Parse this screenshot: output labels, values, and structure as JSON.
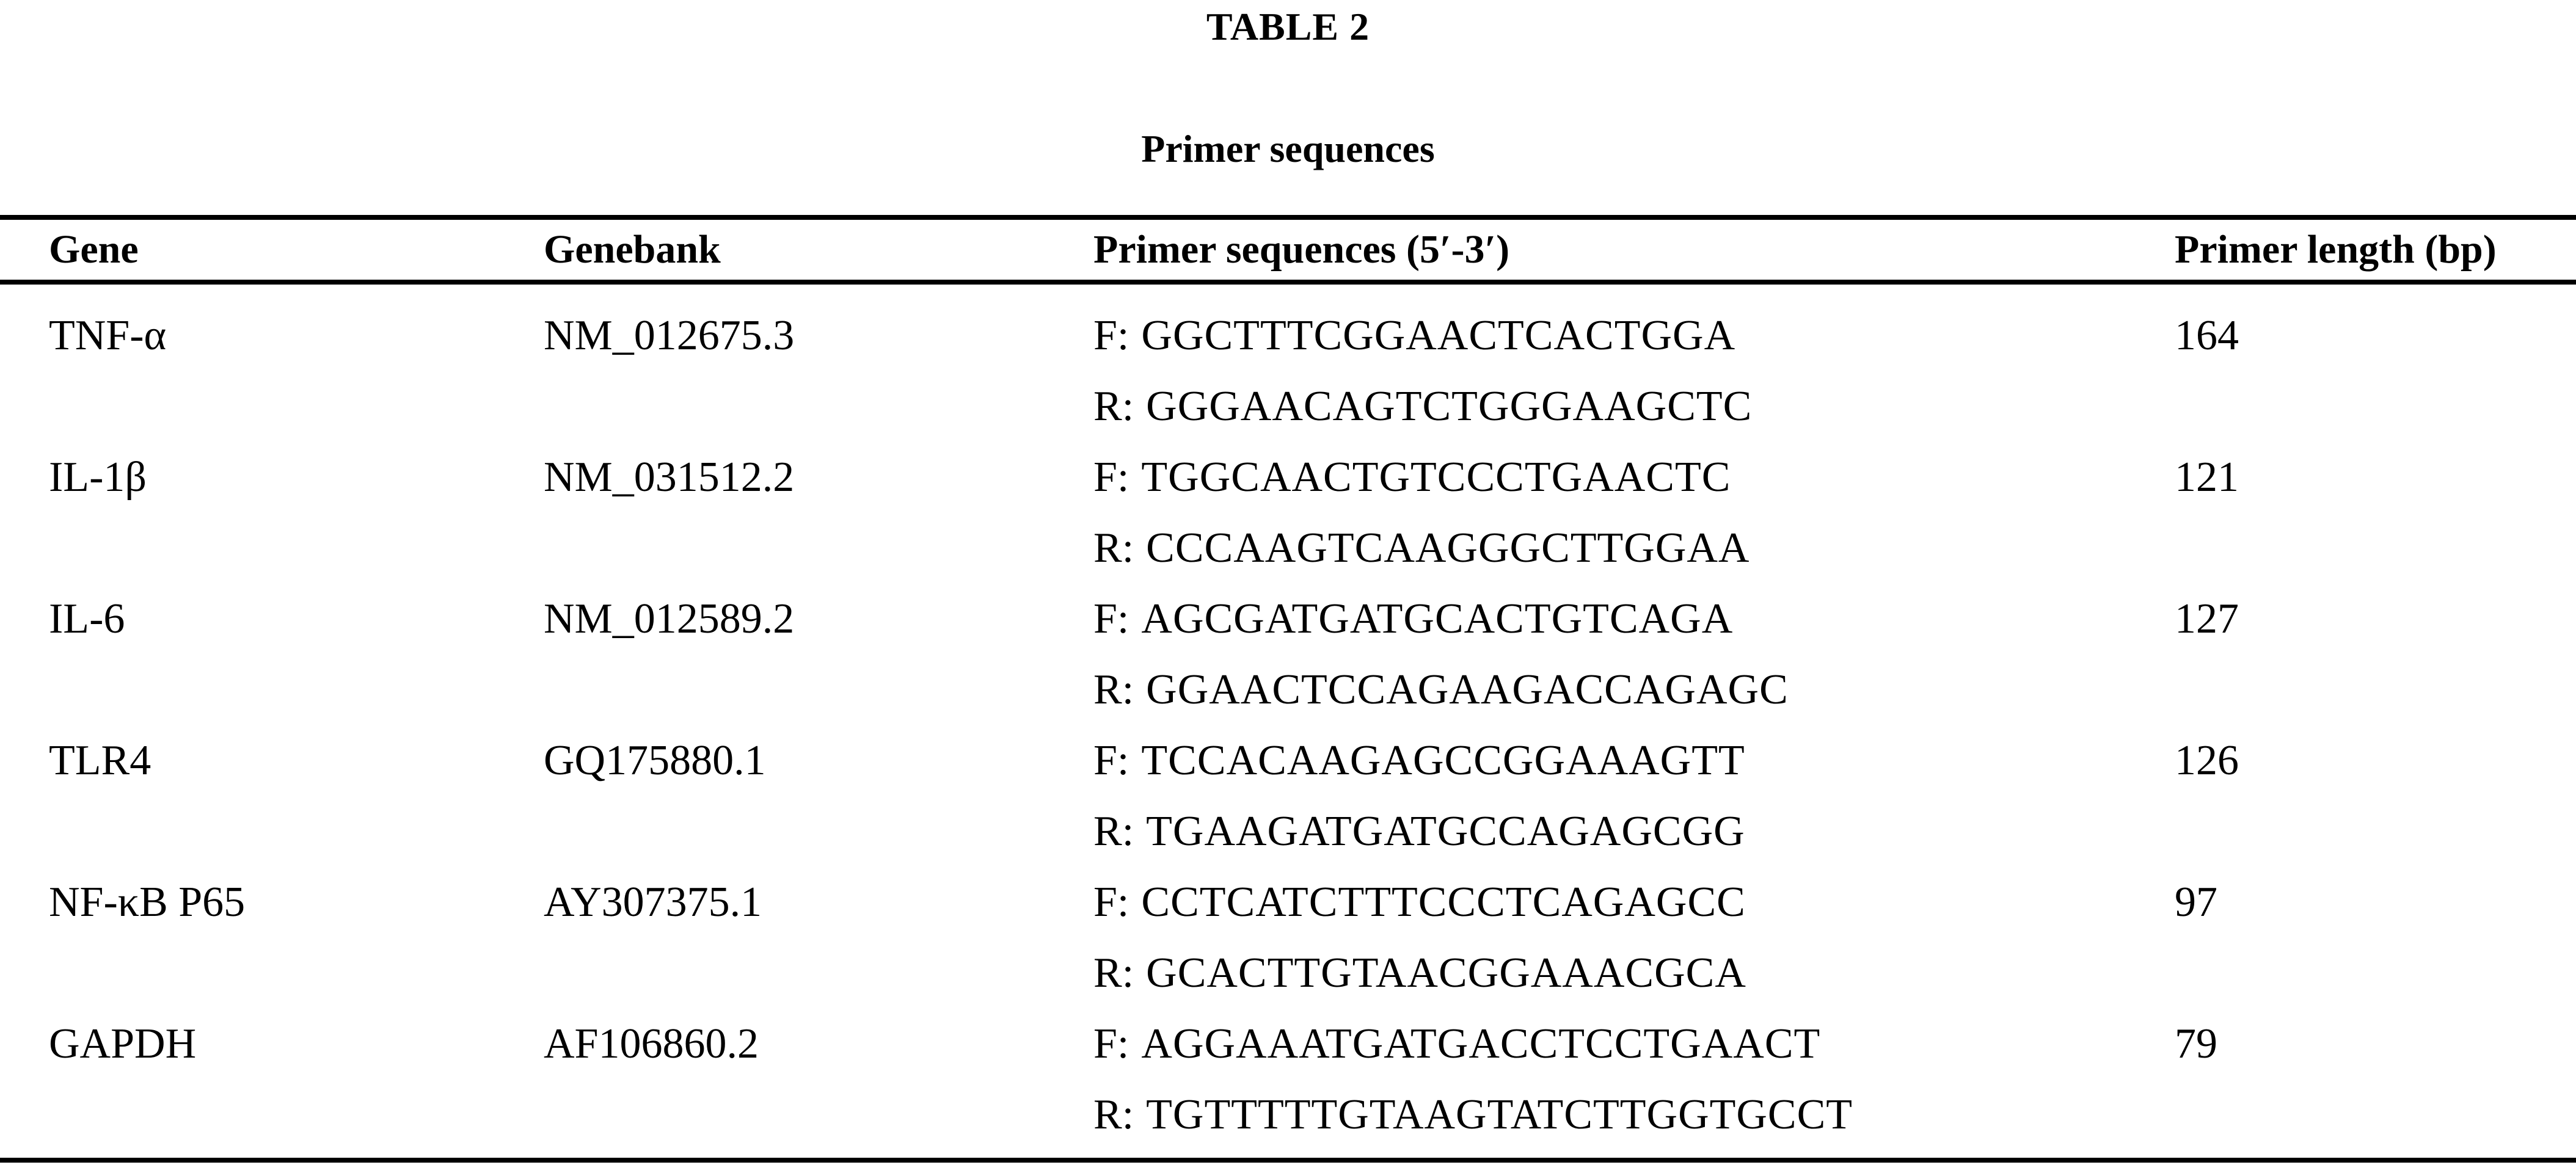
{
  "table": {
    "label": "TABLE 2",
    "caption": "Primer sequences",
    "columns": [
      "Gene",
      "Genebank",
      "Primer sequences (5′-3′)",
      "Primer length (bp)"
    ],
    "forward_prefix": "F:",
    "reverse_prefix": "R:",
    "rows": [
      {
        "gene": "TNF-α",
        "genebank": "NM_012675.3",
        "forward": "GGCTTTCGGAACTCACTGGA",
        "reverse": "GGGAACAGTCTGGGAAGCTC",
        "length_bp": "164"
      },
      {
        "gene": "IL-1β",
        "genebank": "NM_031512.2",
        "forward": "TGGCAACTGTCCCTGAACTC",
        "reverse": "CCCAAGTCAAGGGCTTGGAA",
        "length_bp": "121"
      },
      {
        "gene": "IL-6",
        "genebank": "NM_012589.2",
        "forward": "AGCGATGATGCACTGTCAGA",
        "reverse": "GGAACTCCAGAAGACCAGAGC",
        "length_bp": "127"
      },
      {
        "gene": "TLR4",
        "genebank": "GQ175880.1",
        "forward": "TCCACAAGAGCCGGAAAGTT",
        "reverse": "TGAAGATGATGCCAGAGCGG",
        "length_bp": "126"
      },
      {
        "gene": "NF-κB P65",
        "genebank": "AY307375.1",
        "forward": "CCTCATCTTTCCCTCAGAGCC",
        "reverse": "GCACTTGTAACGGAAACGCA",
        "length_bp": "97"
      },
      {
        "gene": "GAPDH",
        "genebank": "AF106860.2",
        "forward": "AGGAAATGATGACCTCCTGAACT",
        "reverse": "TGTTTTTGTAAGTATCTTGGTGCCT",
        "length_bp": "79"
      }
    ]
  }
}
